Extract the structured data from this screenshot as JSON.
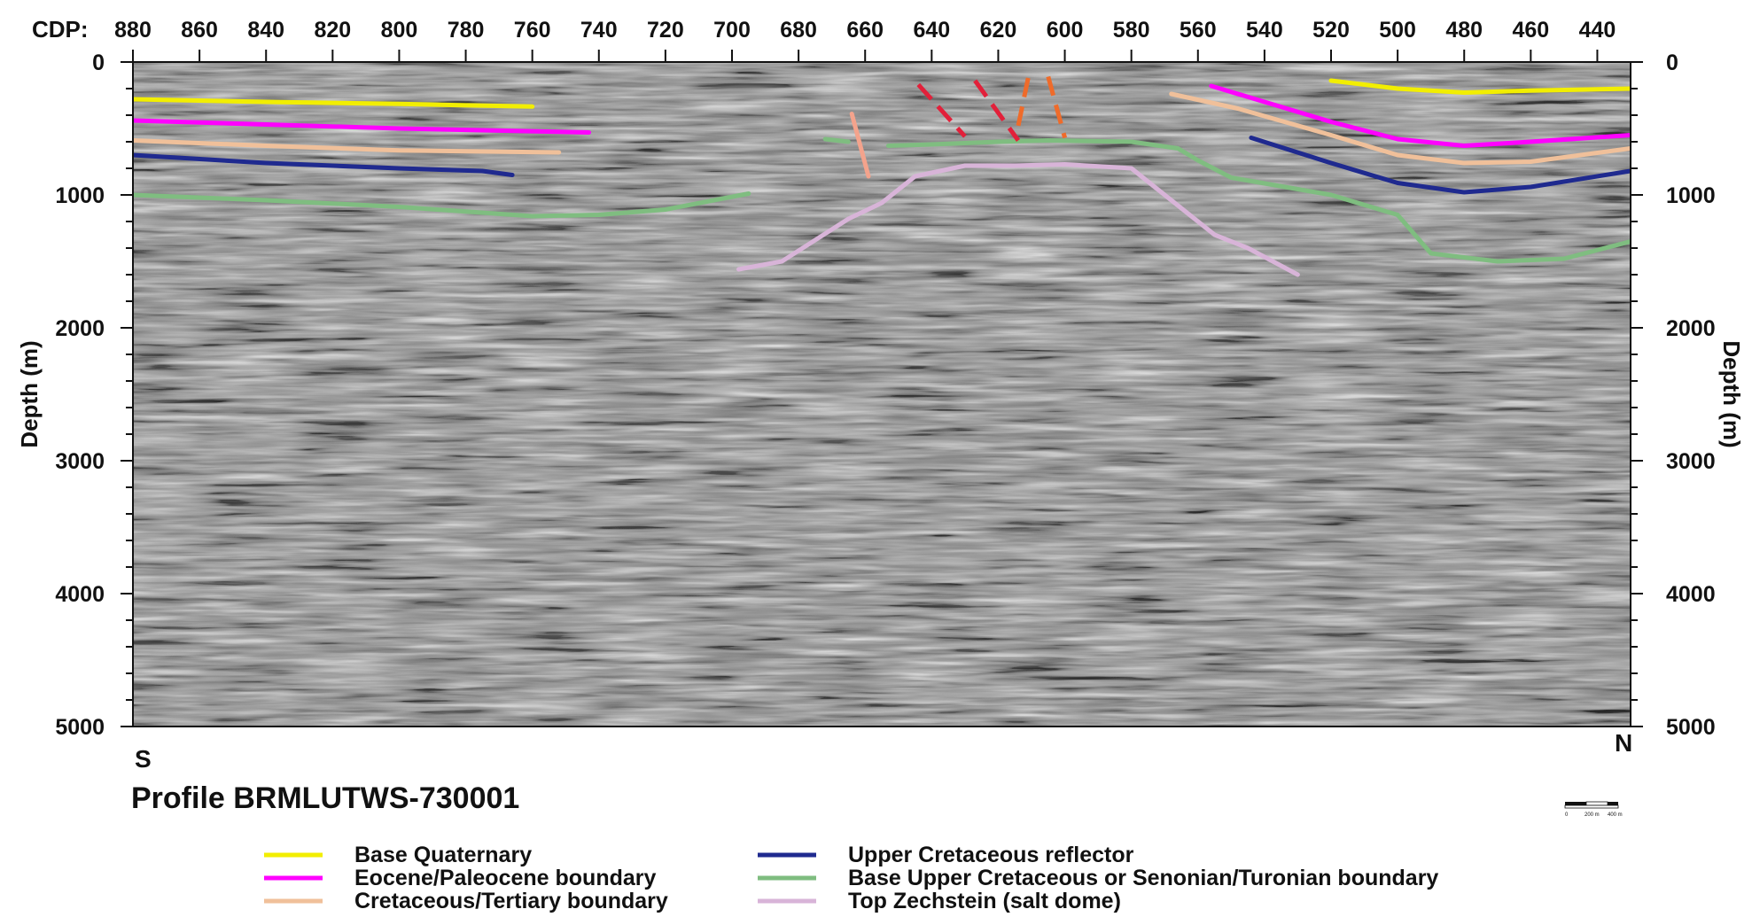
{
  "chart_data": {
    "type": "line",
    "title": "Profile BRMLUTWS-730001",
    "x_axis_label": "CDP:",
    "y_axis_label_left": "Depth (m)",
    "y_axis_label_right": "Depth (m)",
    "xlim": [
      880,
      430
    ],
    "ylim": [
      0,
      5000
    ],
    "y_inverted": true,
    "x_ticks": [
      880,
      860,
      840,
      820,
      800,
      780,
      760,
      740,
      720,
      700,
      680,
      660,
      640,
      620,
      600,
      580,
      560,
      540,
      520,
      500,
      480,
      460,
      440
    ],
    "y_ticks": [
      0,
      1000,
      2000,
      3000,
      4000,
      5000
    ],
    "grid": false,
    "legend_position": "bottom",
    "left_end_label": "S",
    "right_end_label": "N",
    "background": "seismic reflection section (grey wiggle texture)",
    "scale_bar": {
      "labels": [
        "0",
        "200 m",
        "400 m"
      ]
    },
    "series": [
      {
        "name": "Base Quaternary",
        "color": "#f2ee00",
        "segments": [
          [
            [
              880,
              280
            ],
            [
              840,
              300
            ],
            [
              800,
              315
            ],
            [
              760,
              335
            ]
          ],
          [
            [
              520,
              140
            ],
            [
              500,
              200
            ],
            [
              480,
              230
            ],
            [
              460,
              215
            ],
            [
              430,
              200
            ]
          ]
        ]
      },
      {
        "name": "Eocene/Paleocene boundary",
        "color": "#ff00ff",
        "segments": [
          [
            [
              880,
              440
            ],
            [
              840,
              470
            ],
            [
              800,
              500
            ],
            [
              743,
              530
            ]
          ],
          [
            [
              556,
              180
            ],
            [
              540,
              300
            ],
            [
              520,
              450
            ],
            [
              500,
              580
            ],
            [
              480,
              630
            ],
            [
              460,
              600
            ],
            [
              430,
              550
            ]
          ]
        ]
      },
      {
        "name": "Cretaceous/Tertiary boundary",
        "color": "#f0c09a",
        "segments": [
          [
            [
              880,
              590
            ],
            [
              840,
              630
            ],
            [
              800,
              665
            ],
            [
              752,
              680
            ]
          ],
          [
            [
              568,
              240
            ],
            [
              548,
              350
            ],
            [
              520,
              550
            ],
            [
              500,
              700
            ],
            [
              480,
              760
            ],
            [
              460,
              750
            ],
            [
              430,
              650
            ]
          ]
        ]
      },
      {
        "name": "Upper Cretaceous reflector",
        "color": "#1f2a8f",
        "segments": [
          [
            [
              880,
              700
            ],
            [
              840,
              760
            ],
            [
              800,
              800
            ],
            [
              775,
              820
            ],
            [
              766,
              850
            ]
          ],
          [
            [
              544,
              570
            ],
            [
              520,
              760
            ],
            [
              500,
              910
            ],
            [
              480,
              980
            ],
            [
              460,
              940
            ],
            [
              430,
              820
            ]
          ]
        ]
      },
      {
        "name": "Base Upper Cretaceous or Senonian/Turonian boundary",
        "color": "#7fbd80",
        "segments": [
          [
            [
              880,
              1000
            ],
            [
              840,
              1040
            ],
            [
              800,
              1090
            ],
            [
              760,
              1160
            ],
            [
              740,
              1150
            ],
            [
              720,
              1110
            ],
            [
              695,
              990
            ]
          ],
          [
            [
              672,
              580
            ],
            [
              665,
              600
            ]
          ],
          [
            [
              653,
              630
            ],
            [
              640,
              620
            ],
            [
              620,
              600
            ],
            [
              605,
              590
            ],
            [
              580,
              600
            ],
            [
              566,
              650
            ],
            [
              560,
              740
            ],
            [
              550,
              870
            ],
            [
              520,
              1000
            ],
            [
              500,
              1150
            ],
            [
              490,
              1440
            ],
            [
              470,
              1500
            ],
            [
              450,
              1480
            ],
            [
              430,
              1350
            ]
          ]
        ]
      },
      {
        "name": "Top Zechstein (salt dome)",
        "color": "#d8b4d8",
        "segments": [
          [
            [
              698,
              1560
            ],
            [
              685,
              1500
            ],
            [
              665,
              1180
            ],
            [
              655,
              1060
            ],
            [
              645,
              860
            ],
            [
              630,
              780
            ],
            [
              615,
              780
            ],
            [
              600,
              770
            ],
            [
              580,
              800
            ],
            [
              570,
              1000
            ],
            [
              555,
              1300
            ],
            [
              545,
              1400
            ],
            [
              530,
              1600
            ]
          ]
        ]
      },
      {
        "name": "",
        "color": "#e2203a",
        "dash": [
          22,
          11
        ],
        "segments": [
          [
            [
              644,
              170
            ],
            [
              630,
              560
            ]
          ],
          [
            [
              627,
              140
            ],
            [
              614,
              590
            ]
          ]
        ]
      },
      {
        "name": "",
        "color": "#ef6b2a",
        "dash": [
          22,
          11
        ],
        "segments": [
          [
            [
              611,
              120
            ],
            [
              614,
              480
            ]
          ],
          [
            [
              605,
              110
            ],
            [
              600,
              570
            ]
          ]
        ]
      },
      {
        "name": "",
        "color": "#f4a38c",
        "segments": [
          [
            [
              664,
              390
            ],
            [
              659,
              860
            ]
          ]
        ]
      }
    ]
  }
}
